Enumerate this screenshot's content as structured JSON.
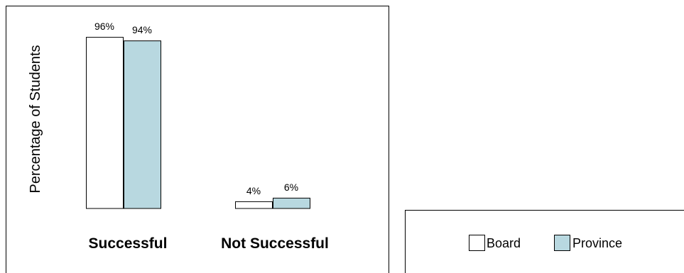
{
  "chart_data": {
    "type": "bar",
    "title": "",
    "xlabel": "",
    "ylabel": "Percentage of Students",
    "categories": [
      "Successful",
      "Not Successful"
    ],
    "series": [
      {
        "name": "Board",
        "values": [
          96,
          4
        ],
        "labels": [
          "96%",
          "4%"
        ],
        "color": "#ffffff"
      },
      {
        "name": "Province",
        "values": [
          94,
          6
        ],
        "labels": [
          "94%",
          "6%"
        ],
        "color": "#b8d8e0"
      }
    ],
    "ylim": [
      0,
      100
    ],
    "grid": false,
    "legend_position": "bottom-right",
    "bar_outline_color": "#000000"
  }
}
